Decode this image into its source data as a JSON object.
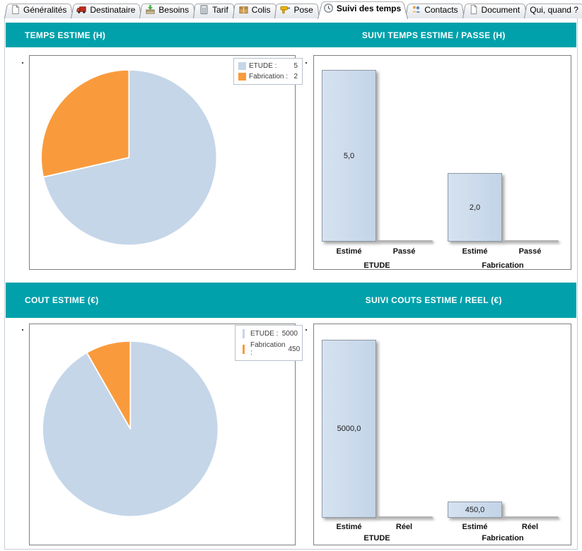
{
  "window": {
    "tabs": [
      {
        "label": "Généralités",
        "icon": "page-icon"
      },
      {
        "label": "Destinataire",
        "icon": "truck-icon"
      },
      {
        "label": "Besoins",
        "icon": "inbox-arrow-icon"
      },
      {
        "label": "Tarif",
        "icon": "calculator-icon"
      },
      {
        "label": "Colis",
        "icon": "parcel-icon"
      },
      {
        "label": "Pose",
        "icon": "drill-icon"
      },
      {
        "label": "Suivi des temps",
        "icon": "clock-icon",
        "active": true
      },
      {
        "label": "Contacts",
        "icon": "people-icon"
      },
      {
        "label": "Document",
        "icon": "document-icon"
      },
      {
        "label": "Qui, quand ?",
        "icon": null
      }
    ]
  },
  "theme": {
    "header_bg": "#00A1AB",
    "pie_blue": "#C5D6E9",
    "pie_orange": "#F99B3D",
    "bar_fill": "#CBDAEC",
    "bar_border": "#8E9AA6"
  },
  "chart_data": [
    {
      "type": "pie",
      "title": "TEMPS ESTIME (H)",
      "labels": [
        "ETUDE",
        "Fabrication"
      ],
      "values": [
        5,
        2
      ],
      "colors": [
        "#C5D6E9",
        "#F99B3D"
      ],
      "legend_marker": "square",
      "legend": [
        {
          "label": "ETUDE :",
          "value": "5"
        },
        {
          "label": "Fabrication :",
          "value": "2"
        }
      ]
    },
    {
      "type": "bar",
      "title": "SUIVI TEMPS ESTIME / PASSE (H)",
      "groups": [
        "ETUDE",
        "Fabrication"
      ],
      "series_labels": [
        "Estimé",
        "Passé"
      ],
      "ylim": [
        0,
        5.4
      ],
      "bars": [
        {
          "group": "ETUDE",
          "name": "Estimé",
          "value": 5,
          "display": "5,0"
        },
        {
          "group": "ETUDE",
          "name": "Passé",
          "value": 0,
          "display": ""
        },
        {
          "group": "Fabrication",
          "name": "Estimé",
          "value": 2,
          "display": "2,0"
        },
        {
          "group": "Fabrication",
          "name": "Passé",
          "value": 0,
          "display": ""
        }
      ]
    },
    {
      "type": "pie",
      "title": "COUT ESTIME (€)",
      "labels": [
        "ETUDE",
        "Fabrication"
      ],
      "values": [
        5000,
        450
      ],
      "colors": [
        "#C5D6E9",
        "#F99B3D"
      ],
      "legend_marker": "bar",
      "legend": [
        {
          "label": "ETUDE :",
          "value": "5000"
        },
        {
          "label": "Fabrication :",
          "value": "450"
        }
      ]
    },
    {
      "type": "bar",
      "title": "SUIVI COUTS ESTIME / REEL (€)",
      "groups": [
        "ETUDE",
        "Fabrication"
      ],
      "series_labels": [
        "Estimé",
        "Réel"
      ],
      "ylim": [
        0,
        5450
      ],
      "bars": [
        {
          "group": "ETUDE",
          "name": "Estimé",
          "value": 5000,
          "display": "5000,0"
        },
        {
          "group": "ETUDE",
          "name": "Réel",
          "value": 0,
          "display": ""
        },
        {
          "group": "Fabrication",
          "name": "Estimé",
          "value": 450,
          "display": "450,0"
        },
        {
          "group": "Fabrication",
          "name": "Réel",
          "value": 0,
          "display": ""
        }
      ]
    }
  ]
}
